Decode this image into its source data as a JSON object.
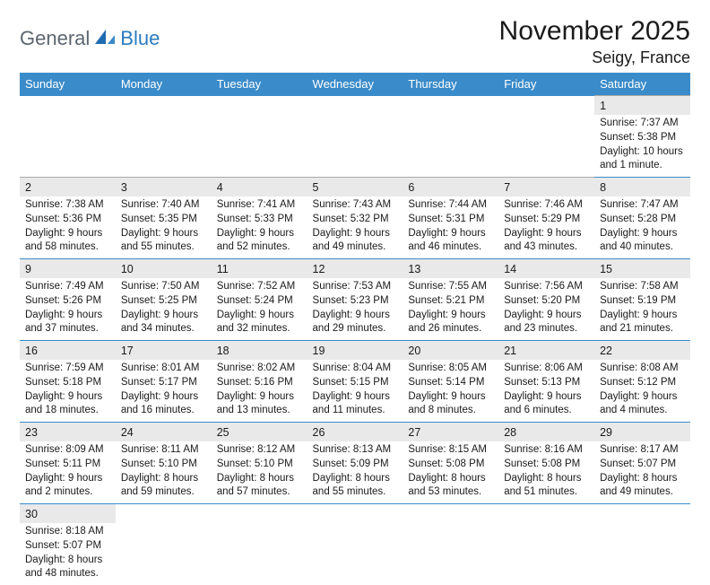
{
  "brand": {
    "text1": "General",
    "text2": "Blue"
  },
  "title": "November 2025",
  "subtitle": "Seigy, France",
  "colors": {
    "header_bg": "#3a8bc9",
    "header_fg": "#ffffff",
    "daynum_bg": "#e9e9e9",
    "row_divider": "#3a8bc9",
    "text": "#1a1a1a",
    "logo_gray": "#5c6670",
    "logo_blue": "#2b7bbf"
  },
  "weekdays": [
    "Sunday",
    "Monday",
    "Tuesday",
    "Wednesday",
    "Thursday",
    "Friday",
    "Saturday"
  ],
  "weeks": [
    [
      null,
      null,
      null,
      null,
      null,
      null,
      {
        "n": "1",
        "sunrise": "Sunrise: 7:37 AM",
        "sunset": "Sunset: 5:38 PM",
        "daylight": "Daylight: 10 hours and 1 minute."
      }
    ],
    [
      {
        "n": "2",
        "sunrise": "Sunrise: 7:38 AM",
        "sunset": "Sunset: 5:36 PM",
        "daylight": "Daylight: 9 hours and 58 minutes."
      },
      {
        "n": "3",
        "sunrise": "Sunrise: 7:40 AM",
        "sunset": "Sunset: 5:35 PM",
        "daylight": "Daylight: 9 hours and 55 minutes."
      },
      {
        "n": "4",
        "sunrise": "Sunrise: 7:41 AM",
        "sunset": "Sunset: 5:33 PM",
        "daylight": "Daylight: 9 hours and 52 minutes."
      },
      {
        "n": "5",
        "sunrise": "Sunrise: 7:43 AM",
        "sunset": "Sunset: 5:32 PM",
        "daylight": "Daylight: 9 hours and 49 minutes."
      },
      {
        "n": "6",
        "sunrise": "Sunrise: 7:44 AM",
        "sunset": "Sunset: 5:31 PM",
        "daylight": "Daylight: 9 hours and 46 minutes."
      },
      {
        "n": "7",
        "sunrise": "Sunrise: 7:46 AM",
        "sunset": "Sunset: 5:29 PM",
        "daylight": "Daylight: 9 hours and 43 minutes."
      },
      {
        "n": "8",
        "sunrise": "Sunrise: 7:47 AM",
        "sunset": "Sunset: 5:28 PM",
        "daylight": "Daylight: 9 hours and 40 minutes."
      }
    ],
    [
      {
        "n": "9",
        "sunrise": "Sunrise: 7:49 AM",
        "sunset": "Sunset: 5:26 PM",
        "daylight": "Daylight: 9 hours and 37 minutes."
      },
      {
        "n": "10",
        "sunrise": "Sunrise: 7:50 AM",
        "sunset": "Sunset: 5:25 PM",
        "daylight": "Daylight: 9 hours and 34 minutes."
      },
      {
        "n": "11",
        "sunrise": "Sunrise: 7:52 AM",
        "sunset": "Sunset: 5:24 PM",
        "daylight": "Daylight: 9 hours and 32 minutes."
      },
      {
        "n": "12",
        "sunrise": "Sunrise: 7:53 AM",
        "sunset": "Sunset: 5:23 PM",
        "daylight": "Daylight: 9 hours and 29 minutes."
      },
      {
        "n": "13",
        "sunrise": "Sunrise: 7:55 AM",
        "sunset": "Sunset: 5:21 PM",
        "daylight": "Daylight: 9 hours and 26 minutes."
      },
      {
        "n": "14",
        "sunrise": "Sunrise: 7:56 AM",
        "sunset": "Sunset: 5:20 PM",
        "daylight": "Daylight: 9 hours and 23 minutes."
      },
      {
        "n": "15",
        "sunrise": "Sunrise: 7:58 AM",
        "sunset": "Sunset: 5:19 PM",
        "daylight": "Daylight: 9 hours and 21 minutes."
      }
    ],
    [
      {
        "n": "16",
        "sunrise": "Sunrise: 7:59 AM",
        "sunset": "Sunset: 5:18 PM",
        "daylight": "Daylight: 9 hours and 18 minutes."
      },
      {
        "n": "17",
        "sunrise": "Sunrise: 8:01 AM",
        "sunset": "Sunset: 5:17 PM",
        "daylight": "Daylight: 9 hours and 16 minutes."
      },
      {
        "n": "18",
        "sunrise": "Sunrise: 8:02 AM",
        "sunset": "Sunset: 5:16 PM",
        "daylight": "Daylight: 9 hours and 13 minutes."
      },
      {
        "n": "19",
        "sunrise": "Sunrise: 8:04 AM",
        "sunset": "Sunset: 5:15 PM",
        "daylight": "Daylight: 9 hours and 11 minutes."
      },
      {
        "n": "20",
        "sunrise": "Sunrise: 8:05 AM",
        "sunset": "Sunset: 5:14 PM",
        "daylight": "Daylight: 9 hours and 8 minutes."
      },
      {
        "n": "21",
        "sunrise": "Sunrise: 8:06 AM",
        "sunset": "Sunset: 5:13 PM",
        "daylight": "Daylight: 9 hours and 6 minutes."
      },
      {
        "n": "22",
        "sunrise": "Sunrise: 8:08 AM",
        "sunset": "Sunset: 5:12 PM",
        "daylight": "Daylight: 9 hours and 4 minutes."
      }
    ],
    [
      {
        "n": "23",
        "sunrise": "Sunrise: 8:09 AM",
        "sunset": "Sunset: 5:11 PM",
        "daylight": "Daylight: 9 hours and 2 minutes."
      },
      {
        "n": "24",
        "sunrise": "Sunrise: 8:11 AM",
        "sunset": "Sunset: 5:10 PM",
        "daylight": "Daylight: 8 hours and 59 minutes."
      },
      {
        "n": "25",
        "sunrise": "Sunrise: 8:12 AM",
        "sunset": "Sunset: 5:10 PM",
        "daylight": "Daylight: 8 hours and 57 minutes."
      },
      {
        "n": "26",
        "sunrise": "Sunrise: 8:13 AM",
        "sunset": "Sunset: 5:09 PM",
        "daylight": "Daylight: 8 hours and 55 minutes."
      },
      {
        "n": "27",
        "sunrise": "Sunrise: 8:15 AM",
        "sunset": "Sunset: 5:08 PM",
        "daylight": "Daylight: 8 hours and 53 minutes."
      },
      {
        "n": "28",
        "sunrise": "Sunrise: 8:16 AM",
        "sunset": "Sunset: 5:08 PM",
        "daylight": "Daylight: 8 hours and 51 minutes."
      },
      {
        "n": "29",
        "sunrise": "Sunrise: 8:17 AM",
        "sunset": "Sunset: 5:07 PM",
        "daylight": "Daylight: 8 hours and 49 minutes."
      }
    ],
    [
      {
        "n": "30",
        "sunrise": "Sunrise: 8:18 AM",
        "sunset": "Sunset: 5:07 PM",
        "daylight": "Daylight: 8 hours and 48 minutes."
      },
      null,
      null,
      null,
      null,
      null,
      null
    ]
  ]
}
